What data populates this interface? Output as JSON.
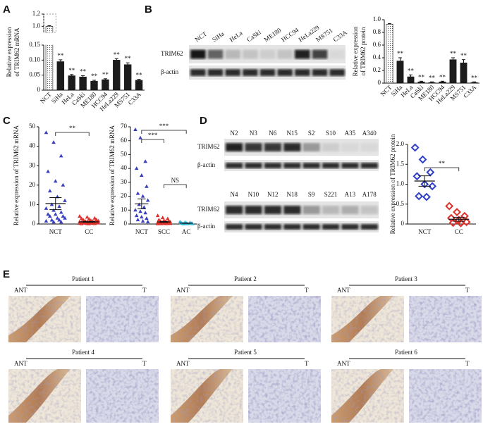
{
  "panel_labels": [
    "A",
    "B",
    "C",
    "D",
    "E"
  ],
  "chart_data": [
    {
      "type": "bar",
      "ylabel": [
        "Relative expression",
        "of TRIM62 mRNA"
      ],
      "categories": [
        "NCT",
        "SiHa",
        "HeLa",
        "CaSki",
        "ME180",
        "HCC94",
        "HeLa229",
        "MS751",
        "C33A"
      ],
      "values": [
        1.0,
        0.095,
        0.048,
        0.044,
        0.03,
        0.035,
        0.1,
        0.085,
        0.033
      ],
      "errors": [
        0.01,
        0.006,
        0.004,
        0.004,
        0.003,
        0.003,
        0.005,
        0.006,
        0.003
      ],
      "significance": [
        null,
        "**",
        "**",
        "**",
        "**",
        "**",
        "**",
        "**",
        "**"
      ],
      "color": "#1c1c1c",
      "control_fill": "dotted",
      "ylim": [
        0,
        1.2
      ],
      "ybreak": [
        0.15,
        0.9
      ],
      "yticks": [
        0,
        0.05,
        {
          "value": 0.1,
          "label": "0.10"
        },
        0.15,
        {
          "value": 1,
          "label": "1.0"
        },
        1.2
      ]
    },
    {
      "type": "bar",
      "ylabel": [
        "Relative expression",
        "of TRIM62 protein"
      ],
      "categories": [
        "NCT",
        "SiHa",
        "HeLa",
        "CaSki",
        "ME180",
        "HCC94",
        "HeLa229",
        "MS751",
        "C33A"
      ],
      "values": [
        0.93,
        0.35,
        0.1,
        0.02,
        0.01,
        0.02,
        0.37,
        0.32,
        0.01
      ],
      "errors": [
        0.01,
        0.05,
        0.03,
        0.01,
        0.01,
        0.01,
        0.03,
        0.05,
        0.01
      ],
      "significance": [
        null,
        "**",
        "**",
        "**",
        "**",
        "**",
        "**",
        "**",
        "**"
      ],
      "color": "#1c1c1c",
      "control_fill": "dotted",
      "ylim": [
        0,
        1.0
      ],
      "yticks": [
        0,
        0.2,
        0.4,
        0.6,
        0.8,
        {
          "value": 1,
          "label": "1.0"
        }
      ]
    },
    {
      "type": "dot",
      "ylabel": "Relative expression of TRIM62 mRNA",
      "categories": [
        "NCT",
        "CC"
      ],
      "points": [
        [
          47,
          42,
          35,
          27,
          22,
          20,
          17,
          14,
          12,
          10,
          9,
          8,
          7,
          6,
          5,
          5,
          4,
          4,
          3,
          3,
          2,
          2,
          1.5,
          1,
          1
        ],
        [
          4,
          3.5,
          3,
          2.8,
          2.5,
          2.2,
          2,
          1.8,
          1.6,
          1.5,
          1.4,
          1.2,
          1.1,
          1,
          0.9,
          0.8,
          0.7,
          0.6,
          0.5,
          0.5,
          0.4,
          0.3,
          0.3,
          0.2,
          0.2,
          0.1,
          0.1,
          1.3,
          0.9,
          0.6
        ]
      ],
      "means": [
        10.5,
        1.1
      ],
      "sems": [
        3.1,
        0.2
      ],
      "colors": [
        "#3a3fc0",
        "#e0302a"
      ],
      "markers": [
        "triangle",
        "triangle"
      ],
      "annotations": [
        "**"
      ],
      "ylim": [
        0,
        50
      ],
      "yticks": [
        0,
        10,
        20,
        30,
        40,
        50
      ]
    },
    {
      "type": "dot",
      "ylabel": "Relative expression of TRIM62 mRNA",
      "categories": [
        "NCT",
        "SCC",
        "AC"
      ],
      "points": [
        [
          68,
          62,
          45,
          40,
          35,
          27,
          22,
          20,
          17,
          14,
          12,
          10,
          9,
          8,
          6,
          5,
          4,
          3,
          2,
          1.5
        ],
        [
          6,
          4.5,
          3.8,
          3,
          2.5,
          2.2,
          2,
          1.8,
          1.5,
          1.3,
          1.2,
          1,
          0.9,
          0.8,
          0.7,
          0.6,
          0.5,
          0.4,
          0.3,
          0.3,
          0.2,
          0.2,
          0.1,
          1.1,
          0.7
        ],
        [
          1.5,
          1.1,
          0.9,
          0.7,
          0.5,
          0.4,
          0.3,
          0.2,
          0.2,
          0.1
        ]
      ],
      "means": [
        14.5,
        1.5,
        0.6
      ],
      "sems": [
        3.6,
        0.3,
        0.15
      ],
      "colors": [
        "#3a3fc0",
        "#e0302a",
        "#2ab4d8"
      ],
      "markers": [
        "triangle",
        "triangle",
        "triangle"
      ],
      "annotations": [
        "***",
        "***",
        "NS"
      ],
      "ylim": [
        0,
        70
      ],
      "yticks": [
        0,
        10,
        20,
        30,
        40,
        50,
        60,
        70
      ]
    },
    {
      "type": "dot",
      "ylabel": "Relative expression of TRIM62 protein",
      "categories": [
        "NCT",
        "CC"
      ],
      "points": [
        [
          1.92,
          1.62,
          1.3,
          1.2,
          1.0,
          0.95,
          0.7,
          0.68
        ],
        [
          0.45,
          0.3,
          0.2,
          0.15,
          0.1,
          0.05,
          0.03,
          0.02
        ]
      ],
      "means": [
        1.08,
        0.12
      ],
      "sems": [
        0.13,
        0.05
      ],
      "colors": [
        "#2f3fc8",
        "#e0302a"
      ],
      "markers": [
        "diamond",
        "diamond"
      ],
      "annotations": [
        "**"
      ],
      "ylim": [
        0,
        2
      ],
      "yticks": [
        0,
        0.5,
        {
          "value": 1,
          "label": "1.0"
        },
        1.5,
        {
          "value": 2,
          "label": "2.0"
        }
      ]
    }
  ],
  "blots": {
    "B": {
      "lanes": [
        "NCT",
        "SiHa",
        "HeLa",
        "CaSki",
        "ME180",
        "HCC94",
        "HeLa229",
        "MS751",
        "C33A"
      ],
      "rows": [
        "TRIM62",
        "β-actin"
      ]
    },
    "D": {
      "rows": [
        "TRIM62",
        "β-actin"
      ],
      "groups": [
        {
          "lanes": [
            "N2",
            "N3",
            "N6",
            "N15",
            "S2",
            "S10",
            "A35",
            "A340"
          ]
        },
        {
          "lanes": [
            "N4",
            "N10",
            "N12",
            "N18",
            "S9",
            "S221",
            "A13",
            "A178"
          ]
        }
      ]
    }
  },
  "ihc": {
    "patients": [
      "Patient 1",
      "Patient 2",
      "Patient 3",
      "Patient 4",
      "Patient 5",
      "Patient 6"
    ],
    "labels": [
      "ANT",
      "T"
    ]
  }
}
